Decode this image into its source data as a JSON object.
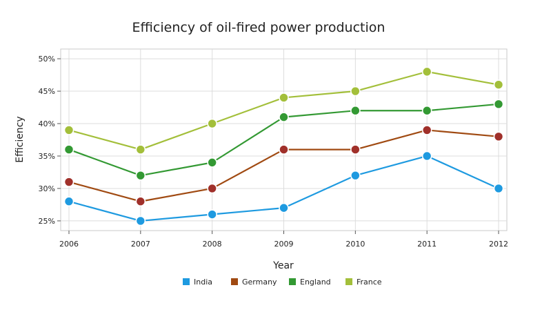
{
  "chart_data": {
    "type": "line",
    "title": "Efficiency of oil-fired power production",
    "xlabel": "Year",
    "ylabel": "Efficiency",
    "x": [
      2006,
      2007,
      2008,
      2009,
      2010,
      2011,
      2012
    ],
    "x_tick_labels": [
      "2006",
      "2007",
      "2008",
      "2009",
      "2010",
      "2011",
      "2012"
    ],
    "ylim": [
      23.5,
      51.5
    ],
    "y_ticks": [
      25,
      30,
      35,
      40,
      45,
      50
    ],
    "y_tick_labels": [
      "25%",
      "30%",
      "35%",
      "40%",
      "45%",
      "50%"
    ],
    "grid": true,
    "legend_position": "bottom",
    "series": [
      {
        "name": "India",
        "color": "#1e9ae0",
        "values": [
          28,
          25,
          26,
          27,
          32,
          35,
          30
        ]
      },
      {
        "name": "Germany",
        "color": "#a04a12",
        "values": [
          31,
          28,
          30,
          36,
          36,
          39,
          38
        ]
      },
      {
        "name": "England",
        "color": "#339933",
        "values": [
          36,
          32,
          34,
          41,
          42,
          42,
          43
        ]
      },
      {
        "name": "France",
        "color": "#a3bf3a",
        "values": [
          39,
          36,
          40,
          44,
          45,
          48,
          46
        ]
      }
    ],
    "marker_colors": {
      "India": "#1e9ae0",
      "Germany": "#a0302a",
      "England": "#339933",
      "France": "#a3bf3a"
    }
  }
}
